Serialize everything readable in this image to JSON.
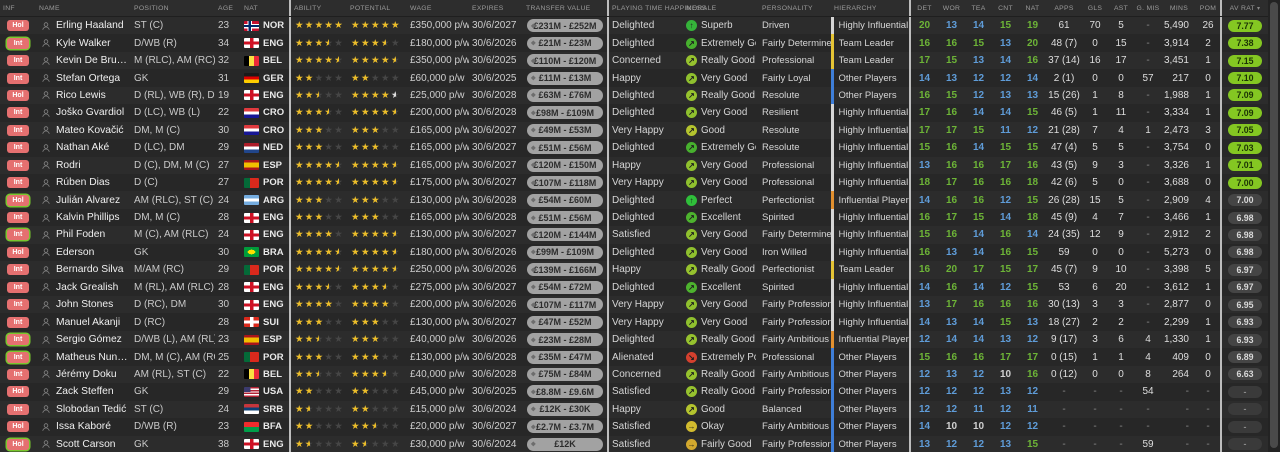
{
  "columns": [
    "INF",
    "NAME",
    "POSITION",
    "AGE",
    "NAT",
    "ABILITY",
    "POTENTIAL",
    "WAGE",
    "EXPIRES",
    "TRANSFER VALUE",
    "PLAYING TIME HAPPINESS",
    "MORALE",
    "PERSONALITY",
    "HIERARCHY",
    "DET",
    "WOR",
    "TEA",
    "CNT",
    "NAT",
    "APPS",
    "GLS",
    "AST",
    "G. MIS",
    "MINS",
    "POM",
    "AV RAT"
  ],
  "sort_arrow_icon": "▾",
  "value_notch_icon": "◆",
  "colors": {
    "attr_high": "#6db437",
    "attr_mid": "#5f9cd8",
    "attr_low": "#d0d0d0",
    "rating_green": "#84c722",
    "badge": "#e57070",
    "badge_ring": "#78c62e",
    "star_gold": "#edbe29"
  },
  "morale_colors": {
    "Superb": "#35b33a",
    "Perfect": "#2fbf3a",
    "Excellent": "#4db32e",
    "Extremely Good": "#47b02e",
    "Really Good": "#96c22e",
    "Very Good": "#8fc02e",
    "Good": "#b4c42e",
    "Okay": "#d2bb2e",
    "Fairly Good": "#d2a82e",
    "Extremely Poor": "#d4402e"
  },
  "morale_arrows": {
    "Superb": "↑",
    "Perfect": "↑",
    "Excellent": "↗",
    "Extremely Good": "↗",
    "Really Good": "↗",
    "Very Good": "↗",
    "Good": "↗",
    "Okay": "→",
    "Fairly Good": "→",
    "Extremely Poor": "↘"
  },
  "hierarchy_colors": {
    "Highly Influential Player": "#d6d6d6",
    "Team Leader": "#e5c435",
    "Influential Player": "#e2902f",
    "Other Players": "#3e7ed8"
  },
  "players": [
    {
      "inf": "Hol",
      "inf_ring": false,
      "name": "Erling Haaland",
      "position": "ST (C)",
      "age": "23",
      "nat": "NOR",
      "ability": 5,
      "potential": 5,
      "wage": "£350,000 p/w",
      "expires": "30/6/2027",
      "value": "£231M - £252M",
      "happiness": "Delighted",
      "morale": "Superb",
      "personality": "Driven",
      "hierarchy": "Highly Influential Player",
      "attrs": [
        20,
        13,
        14,
        15,
        19
      ],
      "apps": "61",
      "gls": "70",
      "ast": "5",
      "gmis": "-",
      "mins": "5,490",
      "pom": "26",
      "rating": "7.77",
      "rating_green": true
    },
    {
      "inf": "Int",
      "inf_ring": true,
      "name": "Kyle Walker",
      "position": "D/WB (R)",
      "age": "34",
      "nat": "ENG",
      "ability": 3.5,
      "potential": 3.5,
      "wage": "£180,000 p/w",
      "expires": "30/6/2026",
      "value": "£21M - £23M",
      "happiness": "Delighted",
      "morale": "Extremely Good",
      "personality": "Fairly Determined",
      "hierarchy": "Team Leader",
      "attrs": [
        16,
        16,
        15,
        13,
        20
      ],
      "apps": "48 (7)",
      "gls": "0",
      "ast": "15",
      "gmis": "-",
      "mins": "3,914",
      "pom": "2",
      "rating": "7.38",
      "rating_green": true
    },
    {
      "inf": "Int",
      "inf_ring": false,
      "name": "Kevin De Bruyne",
      "position": "M (RLC), AM (RC), ST (C)",
      "age": "32",
      "nat": "BEL",
      "ability": 4.5,
      "potential": 4.5,
      "wage": "£350,000 p/w",
      "expires": "30/6/2025",
      "value": "£110M - £120M",
      "happiness": "Concerned",
      "morale": "Really Good",
      "personality": "Professional",
      "hierarchy": "Team Leader",
      "attrs": [
        17,
        15,
        13,
        14,
        16
      ],
      "apps": "37 (14)",
      "gls": "16",
      "ast": "17",
      "gmis": "-",
      "mins": "3,451",
      "pom": "1",
      "rating": "7.15",
      "rating_green": true
    },
    {
      "inf": "Int",
      "inf_ring": false,
      "name": "Stefan Ortega",
      "position": "GK",
      "age": "31",
      "nat": "GER",
      "ability": 2,
      "potential": 2,
      "wage": "£60,000 p/w",
      "expires": "30/6/2025",
      "value": "£11M - £13M",
      "happiness": "Happy",
      "morale": "Very Good",
      "personality": "Fairly Loyal",
      "hierarchy": "Other Players",
      "attrs": [
        14,
        13,
        12,
        12,
        14
      ],
      "apps": "2 (1)",
      "gls": "0",
      "ast": "0",
      "gmis": "57",
      "mins": "217",
      "pom": "0",
      "rating": "7.10",
      "rating_green": true
    },
    {
      "inf": "Hol",
      "inf_ring": false,
      "name": "Rico Lewis",
      "position": "D (RL), WB (R), DM, M (C)",
      "age": "19",
      "nat": "ENG",
      "ability": 2.5,
      "potential": 4.5,
      "pot_half_silver": true,
      "wage": "£25,000 p/w",
      "expires": "30/6/2028",
      "value": "£63M - £76M",
      "happiness": "Delighted",
      "morale": "Really Good",
      "personality": "Resolute",
      "hierarchy": "Other Players",
      "attrs": [
        16,
        15,
        12,
        13,
        13
      ],
      "apps": "15 (26)",
      "gls": "1",
      "ast": "8",
      "gmis": "-",
      "mins": "1,988",
      "pom": "1",
      "rating": "7.09",
      "rating_green": true
    },
    {
      "inf": "Int",
      "inf_ring": false,
      "name": "Joško Gvardiol",
      "position": "D (LC), WB (L)",
      "age": "22",
      "nat": "CRO",
      "ability": 3.5,
      "potential": 4.5,
      "wage": "£200,000 p/w",
      "expires": "30/6/2028",
      "value": "£98M - £109M",
      "happiness": "Delighted",
      "morale": "Very Good",
      "personality": "Resilient",
      "hierarchy": "Highly Influential Player",
      "attrs": [
        17,
        16,
        14,
        14,
        15
      ],
      "apps": "46 (5)",
      "gls": "1",
      "ast": "11",
      "gmis": "-",
      "mins": "3,334",
      "pom": "1",
      "rating": "7.09",
      "rating_green": true
    },
    {
      "inf": "Int",
      "inf_ring": false,
      "name": "Mateo Kovačić",
      "position": "DM, M (C)",
      "age": "30",
      "nat": "CRO",
      "ability": 3,
      "potential": 3,
      "wage": "£165,000 p/w",
      "expires": "30/6/2027",
      "value": "£49M - £53M",
      "happiness": "Very Happy",
      "morale": "Good",
      "personality": "Resolute",
      "hierarchy": "Highly Influential Player",
      "attrs": [
        17,
        17,
        15,
        11,
        12
      ],
      "apps": "21 (28)",
      "gls": "7",
      "ast": "4",
      "gmis": "1",
      "mins": "2,473",
      "pom": "3",
      "rating": "7.05",
      "rating_green": true
    },
    {
      "inf": "Int",
      "inf_ring": false,
      "name": "Nathan Aké",
      "position": "D (LC), DM",
      "age": "29",
      "nat": "NED",
      "ability": 3,
      "potential": 3,
      "wage": "£165,000 p/w",
      "expires": "30/6/2027",
      "value": "£51M - £56M",
      "happiness": "Delighted",
      "morale": "Extremely Good",
      "personality": "Resolute",
      "hierarchy": "Highly Influential Player",
      "attrs": [
        15,
        16,
        14,
        15,
        15
      ],
      "apps": "47 (4)",
      "gls": "5",
      "ast": "5",
      "gmis": "-",
      "mins": "3,754",
      "pom": "0",
      "rating": "7.03",
      "rating_green": true
    },
    {
      "inf": "Int",
      "inf_ring": false,
      "name": "Rodri",
      "position": "D (C), DM, M (C)",
      "age": "27",
      "nat": "ESP",
      "ability": 4.5,
      "potential": 4.5,
      "wage": "£165,000 p/w",
      "expires": "30/6/2027",
      "value": "£120M - £150M",
      "happiness": "Happy",
      "morale": "Very Good",
      "personality": "Professional",
      "hierarchy": "Highly Influential Player",
      "attrs": [
        13,
        16,
        16,
        17,
        16
      ],
      "apps": "43 (5)",
      "gls": "9",
      "ast": "3",
      "gmis": "-",
      "mins": "3,326",
      "pom": "1",
      "rating": "7.01",
      "rating_green": true
    },
    {
      "inf": "Int",
      "inf_ring": false,
      "name": "Rúben Dias",
      "position": "D (C)",
      "age": "27",
      "nat": "POR",
      "ability": 4.5,
      "potential": 4.5,
      "wage": "£175,000 p/w",
      "expires": "30/6/2027",
      "value": "£107M - £118M",
      "happiness": "Very Happy",
      "morale": "Very Good",
      "personality": "Professional",
      "hierarchy": "Highly Influential Player",
      "attrs": [
        18,
        17,
        16,
        16,
        18
      ],
      "apps": "42 (6)",
      "gls": "5",
      "ast": "0",
      "gmis": "-",
      "mins": "3,688",
      "pom": "0",
      "rating": "7.00",
      "rating_green": true
    },
    {
      "inf": "Hol",
      "inf_ring": true,
      "name": "Julián Álvarez",
      "position": "AM (RLC), ST (C)",
      "age": "24",
      "nat": "ARG",
      "ability": 3,
      "potential": 3,
      "wage": "£130,000 p/w",
      "expires": "30/6/2028",
      "value": "£54M - £60M",
      "happiness": "Delighted",
      "morale": "Perfect",
      "personality": "Perfectionist",
      "hierarchy": "Influential Player",
      "attrs": [
        14,
        16,
        16,
        12,
        15
      ],
      "apps": "26 (28)",
      "gls": "15",
      "ast": "5",
      "gmis": "-",
      "mins": "2,909",
      "pom": "4",
      "rating": "7.00",
      "rating_green": false
    },
    {
      "inf": "Int",
      "inf_ring": false,
      "name": "Kalvin Phillips",
      "position": "DM, M (C)",
      "age": "28",
      "nat": "ENG",
      "ability": 3,
      "potential": 3,
      "wage": "£165,000 p/w",
      "expires": "30/6/2028",
      "value": "£51M - £56M",
      "happiness": "Delighted",
      "morale": "Excellent",
      "personality": "Spirited",
      "hierarchy": "Highly Influential Player",
      "attrs": [
        16,
        17,
        15,
        14,
        18
      ],
      "apps": "45 (9)",
      "gls": "4",
      "ast": "7",
      "gmis": "-",
      "mins": "3,466",
      "pom": "1",
      "rating": "6.98",
      "rating_green": false
    },
    {
      "inf": "Int",
      "inf_ring": true,
      "name": "Phil Foden",
      "position": "M (C), AM (RLC)",
      "age": "24",
      "nat": "ENG",
      "ability": 4,
      "potential": 4.5,
      "wage": "£130,000 p/w",
      "expires": "30/6/2027",
      "value": "£120M - £144M",
      "happiness": "Satisfied",
      "morale": "Very Good",
      "personality": "Fairly Determined",
      "hierarchy": "Highly Influential Player",
      "attrs": [
        15,
        16,
        14,
        16,
        14
      ],
      "apps": "24 (35)",
      "gls": "12",
      "ast": "9",
      "gmis": "-",
      "mins": "2,912",
      "pom": "2",
      "rating": "6.98",
      "rating_green": false
    },
    {
      "inf": "Hol",
      "inf_ring": false,
      "name": "Ederson",
      "position": "GK",
      "age": "30",
      "nat": "BRA",
      "ability": 4.5,
      "potential": 4.5,
      "wage": "£180,000 p/w",
      "expires": "30/6/2026",
      "value": "£99M - £109M",
      "happiness": "Delighted",
      "morale": "Very Good",
      "personality": "Iron Willed",
      "hierarchy": "Highly Influential Player",
      "attrs": [
        16,
        13,
        14,
        16,
        15
      ],
      "apps": "59",
      "gls": "0",
      "ast": "0",
      "gmis": "-",
      "mins": "5,273",
      "pom": "0",
      "rating": "6.98",
      "rating_green": false
    },
    {
      "inf": "Int",
      "inf_ring": false,
      "name": "Bernardo Silva",
      "position": "M/AM (RC)",
      "age": "29",
      "nat": "POR",
      "ability": 4.5,
      "potential": 4.5,
      "wage": "£250,000 p/w",
      "expires": "30/6/2026",
      "value": "£139M - £166M",
      "happiness": "Happy",
      "morale": "Really Good",
      "personality": "Perfectionist",
      "hierarchy": "Team Leader",
      "attrs": [
        16,
        20,
        17,
        15,
        17
      ],
      "apps": "45 (7)",
      "gls": "9",
      "ast": "10",
      "gmis": "-",
      "mins": "3,398",
      "pom": "5",
      "rating": "6.97",
      "rating_green": false
    },
    {
      "inf": "Int",
      "inf_ring": false,
      "name": "Jack Grealish",
      "position": "M (RL), AM (RLC)",
      "age": "28",
      "nat": "ENG",
      "ability": 3.5,
      "potential": 3.5,
      "wage": "£275,000 p/w",
      "expires": "30/6/2027",
      "value": "£54M - £72M",
      "happiness": "Delighted",
      "morale": "Excellent",
      "personality": "Spirited",
      "hierarchy": "Highly Influential Player",
      "attrs": [
        14,
        16,
        14,
        12,
        15
      ],
      "apps": "53",
      "gls": "6",
      "ast": "20",
      "gmis": "-",
      "mins": "3,612",
      "pom": "1",
      "rating": "6.97",
      "rating_green": false
    },
    {
      "inf": "Int",
      "inf_ring": false,
      "name": "John Stones",
      "position": "D (RC), DM",
      "age": "30",
      "nat": "ENG",
      "ability": 4,
      "potential": 4,
      "wage": "£200,000 p/w",
      "expires": "30/6/2026",
      "value": "£107M - £117M",
      "happiness": "Very Happy",
      "morale": "Very Good",
      "personality": "Fairly Professional",
      "hierarchy": "Highly Influential Player",
      "attrs": [
        13,
        17,
        16,
        16,
        16
      ],
      "apps": "30 (13)",
      "gls": "3",
      "ast": "3",
      "gmis": "-",
      "mins": "2,877",
      "pom": "0",
      "rating": "6.95",
      "rating_green": false
    },
    {
      "inf": "Int",
      "inf_ring": false,
      "name": "Manuel Akanji",
      "position": "D (RC)",
      "age": "28",
      "nat": "SUI",
      "ability": 3,
      "potential": 3,
      "wage": "£130,000 p/w",
      "expires": "30/6/2027",
      "value": "£47M - £52M",
      "happiness": "Very Happy",
      "morale": "Very Good",
      "personality": "Fairly Professional",
      "hierarchy": "Highly Influential Player",
      "attrs": [
        14,
        13,
        14,
        15,
        13
      ],
      "apps": "18 (27)",
      "gls": "2",
      "ast": "2",
      "gmis": "-",
      "mins": "2,299",
      "pom": "1",
      "rating": "6.93",
      "rating_green": false
    },
    {
      "inf": "Int",
      "inf_ring": true,
      "name": "Sergio Gómez",
      "position": "D/WB (L), AM (RL)",
      "age": "23",
      "nat": "ESP",
      "ability": 2.5,
      "potential": 3,
      "wage": "£40,000 p/w",
      "expires": "30/6/2026",
      "value": "£23M - £28M",
      "happiness": "Delighted",
      "morale": "Really Good",
      "personality": "Fairly Ambitious",
      "hierarchy": "Influential Player",
      "attrs": [
        12,
        14,
        14,
        13,
        12
      ],
      "apps": "9 (17)",
      "gls": "3",
      "ast": "6",
      "gmis": "4",
      "mins": "1,330",
      "pom": "1",
      "rating": "6.93",
      "rating_green": false
    },
    {
      "inf": "Int",
      "inf_ring": true,
      "name": "Matheus Nunes",
      "position": "DM, M (C), AM (RC)",
      "age": "25",
      "nat": "POR",
      "ability": 3,
      "potential": 3,
      "wage": "£130,000 p/w",
      "expires": "30/6/2028",
      "value": "£35M - £47M",
      "happiness": "Alienated",
      "morale": "Extremely Poor",
      "personality": "Professional",
      "hierarchy": "Other Players",
      "attrs": [
        15,
        16,
        16,
        17,
        17
      ],
      "apps": "0 (15)",
      "gls": "1",
      "ast": "1",
      "gmis": "4",
      "mins": "409",
      "pom": "0",
      "rating": "6.89",
      "rating_green": false
    },
    {
      "inf": "Int",
      "inf_ring": false,
      "name": "Jérémy Doku",
      "position": "AM (RL), ST (C)",
      "age": "22",
      "nat": "BEL",
      "ability": 2.5,
      "potential": 3.5,
      "wage": "£40,000 p/w",
      "expires": "30/6/2028",
      "value": "£75M - £84M",
      "happiness": "Concerned",
      "morale": "Really Good",
      "personality": "Fairly Ambitious",
      "hierarchy": "Other Players",
      "attrs": [
        12,
        13,
        12,
        10,
        16
      ],
      "apps": "0 (12)",
      "gls": "0",
      "ast": "0",
      "gmis": "8",
      "mins": "264",
      "pom": "0",
      "rating": "6.63",
      "rating_green": false
    },
    {
      "inf": "Hol",
      "inf_ring": false,
      "name": "Zack Steffen",
      "position": "GK",
      "age": "29",
      "nat": "USA",
      "ability": 2,
      "potential": 2,
      "wage": "£45,000 p/w",
      "expires": "30/6/2025",
      "value": "£8.8M - £9.6M",
      "happiness": "Satisfied",
      "morale": "Really Good",
      "personality": "Fairly Professional",
      "hierarchy": "Other Players",
      "attrs": [
        12,
        12,
        12,
        13,
        12
      ],
      "apps": "-",
      "gls": "-",
      "ast": "-",
      "gmis": "54",
      "mins": "-",
      "pom": "-",
      "rating": "-",
      "rating_green": false
    },
    {
      "inf": "Int",
      "inf_ring": false,
      "name": "Slobodan Tedić",
      "position": "ST (C)",
      "age": "24",
      "nat": "SRB",
      "ability": 1.5,
      "potential": 2,
      "wage": "£15,000 p/w",
      "expires": "30/6/2024",
      "value": "£12K - £30K",
      "happiness": "Happy",
      "morale": "Good",
      "personality": "Balanced",
      "hierarchy": "Other Players",
      "attrs": [
        12,
        12,
        11,
        12,
        11
      ],
      "apps": "-",
      "gls": "-",
      "ast": "-",
      "gmis": "-",
      "mins": "-",
      "pom": "-",
      "rating": "-",
      "rating_green": false
    },
    {
      "inf": "Hol",
      "inf_ring": false,
      "name": "Issa Kaboré",
      "position": "D/WB (R)",
      "age": "23",
      "nat": "BFA",
      "ability": 2,
      "potential": 2.5,
      "wage": "£20,000 p/w",
      "expires": "30/6/2027",
      "value": "£2.7M - £3.7M",
      "happiness": "Satisfied",
      "morale": "Okay",
      "personality": "Fairly Ambitious",
      "hierarchy": "Other Players",
      "attrs": [
        14,
        10,
        10,
        12,
        12
      ],
      "apps": "-",
      "gls": "-",
      "ast": "-",
      "gmis": "-",
      "mins": "-",
      "pom": "-",
      "rating": "-",
      "rating_green": false
    },
    {
      "inf": "Hol",
      "inf_ring": true,
      "name": "Scott Carson",
      "position": "GK",
      "age": "38",
      "nat": "ENG",
      "ability": 1.5,
      "potential": 1.5,
      "wage": "£30,000 p/w",
      "expires": "30/6/2024",
      "value": "£12K",
      "happiness": "Satisfied",
      "morale": "Fairly Good",
      "personality": "Fairly Professional",
      "hierarchy": "Other Players",
      "attrs": [
        13,
        12,
        12,
        13,
        15
      ],
      "apps": "-",
      "gls": "-",
      "ast": "-",
      "gmis": "59",
      "mins": "-",
      "pom": "-",
      "rating": "-",
      "rating_green": false
    }
  ]
}
